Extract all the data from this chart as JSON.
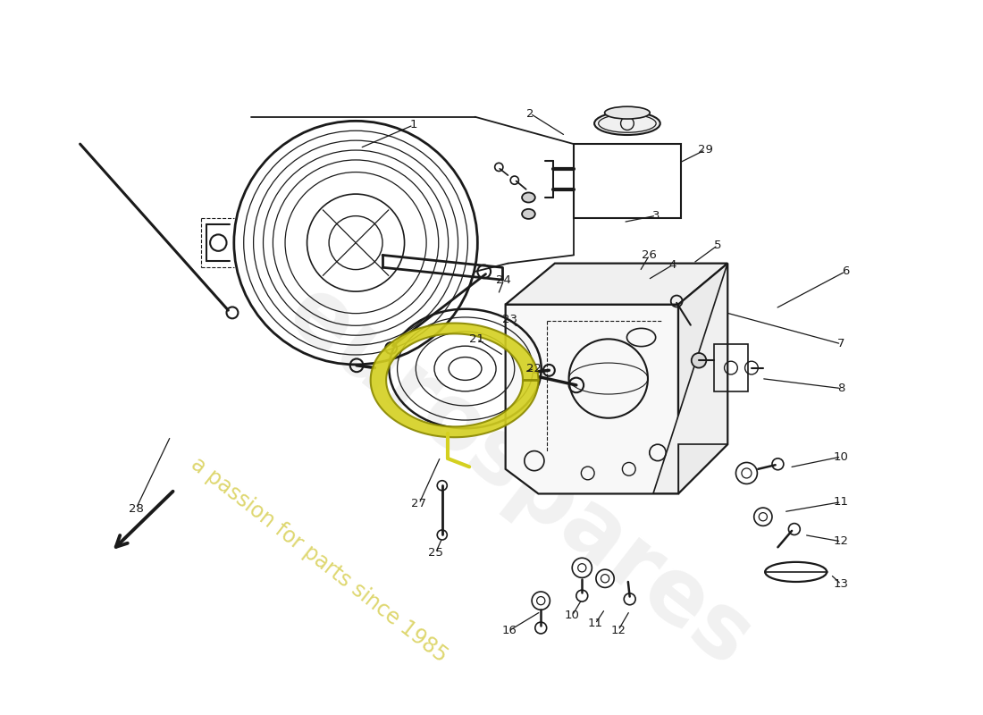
{
  "bg_color": "#ffffff",
  "line_color": "#1a1a1a",
  "label_color": "#1a1a1a",
  "ring_color": "#d4d020",
  "ring_edge_color": "#8a8800",
  "watermark1": "eurospares",
  "watermark2": "a passion for parts since 1985",
  "figsize": [
    11.0,
    8.0
  ],
  "dpi": 100
}
